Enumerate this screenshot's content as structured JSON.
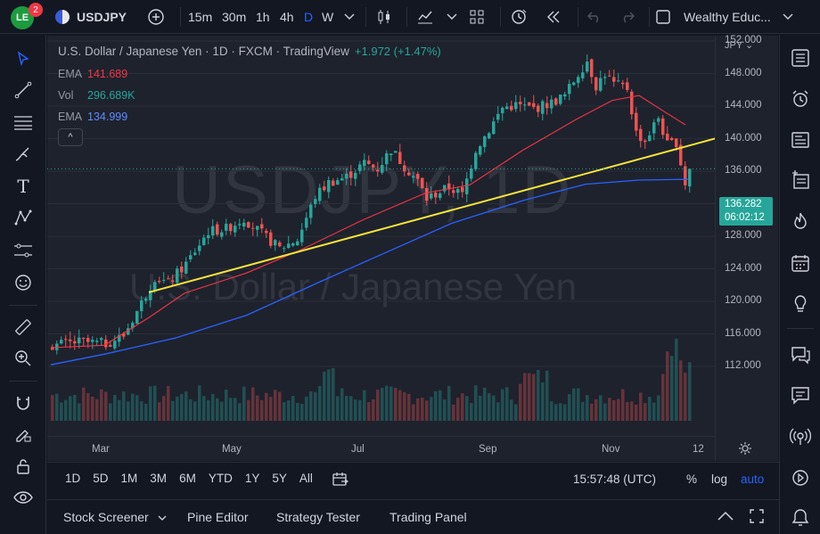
{
  "topbar": {
    "logo_text": "LE",
    "notification_count": "2",
    "symbol": "USDJPY",
    "intervals": [
      "15m",
      "30m",
      "1h",
      "4h",
      "D",
      "W"
    ],
    "active_interval": "D",
    "layout_name": "Wealthy Educ..."
  },
  "legend": {
    "title": "U.S. Dollar / Japanese Yen · 1D · FXCM · TradingView",
    "change": "+1.972 (+1.47%)",
    "indicators": [
      {
        "name": "EMA",
        "value": "141.689",
        "color": "#f23645"
      },
      {
        "name": "Vol",
        "value": "296.689K",
        "color": "#26a69a"
      },
      {
        "name": "EMA",
        "value": "134.999",
        "color": "#2962ff"
      }
    ],
    "collapse_glyph": "^"
  },
  "watermark": {
    "line1": "USDJPY, 1D",
    "line2": "U.S. Dollar / Japanese Yen"
  },
  "price_axis": {
    "currency": "JPY",
    "labels": [
      "152.000",
      "148.000",
      "144.000",
      "140.000",
      "136.000",
      "132.000",
      "128.000",
      "124.000",
      "120.000",
      "116.000",
      "112.000"
    ],
    "current_price": "136.282",
    "countdown": "06:02:12"
  },
  "time_axis": {
    "labels": [
      "Mar",
      "May",
      "Jul",
      "Sep",
      "Nov",
      "12"
    ]
  },
  "range_bar": {
    "ranges": [
      "1D",
      "5D",
      "1M",
      "3M",
      "6M",
      "YTD",
      "1Y",
      "5Y",
      "All"
    ],
    "time": "15:57:48 (UTC)",
    "percent": "%",
    "log": "log",
    "auto": "auto"
  },
  "bottom_panel": {
    "tabs": [
      "Stock Screener",
      "Pine Editor",
      "Strategy Tester",
      "Trading Panel"
    ]
  },
  "colors": {
    "up": "#26a69a",
    "down": "#ef5350",
    "ema_fast": "#f23645",
    "ema_slow": "#2962ff",
    "trendline": "#f5e43a",
    "accent": "#2962ff"
  },
  "chart_data": {
    "type": "candlestick",
    "symbol": "USDJPY",
    "timeframe": "1D",
    "ylim": [
      110,
      154
    ],
    "trendline": {
      "from": {
        "month": "Mar",
        "price": 121
      },
      "to": {
        "month": "Nov+",
        "price": 140
      }
    },
    "ema_slow_path": [
      [
        0,
        112.2
      ],
      [
        60,
        113.5
      ],
      [
        140,
        115.5
      ],
      [
        220,
        118.3
      ],
      [
        300,
        122.3
      ],
      [
        380,
        126.2
      ],
      [
        450,
        129.6
      ],
      [
        530,
        132.4
      ],
      [
        600,
        134.4
      ],
      [
        660,
        134.9
      ],
      [
        715,
        135.0
      ]
    ],
    "ema_fast_path": [
      [
        0,
        114.3
      ],
      [
        60,
        114.6
      ],
      [
        110,
        118.0
      ],
      [
        150,
        121.0
      ],
      [
        220,
        123.5
      ],
      [
        280,
        126.3
      ],
      [
        350,
        130.0
      ],
      [
        420,
        133.3
      ],
      [
        470,
        134.3
      ],
      [
        530,
        138.6
      ],
      [
        590,
        142.4
      ],
      [
        630,
        144.7
      ],
      [
        660,
        145.3
      ],
      [
        690,
        143.2
      ],
      [
        712,
        141.7
      ]
    ],
    "close_path": [
      [
        0,
        114.6
      ],
      [
        30,
        115.0
      ],
      [
        60,
        114.8
      ],
      [
        80,
        115.8
      ],
      [
        100,
        119.8
      ],
      [
        115,
        123.0
      ],
      [
        130,
        122.2
      ],
      [
        150,
        124.6
      ],
      [
        175,
        128.6
      ],
      [
        195,
        128.9
      ],
      [
        215,
        130.2
      ],
      [
        235,
        128.3
      ],
      [
        255,
        126.5
      ],
      [
        275,
        127.6
      ],
      [
        295,
        132.9
      ],
      [
        310,
        134.6
      ],
      [
        330,
        135.3
      ],
      [
        350,
        137.0
      ],
      [
        365,
        136.3
      ],
      [
        380,
        138.7
      ],
      [
        395,
        136.6
      ],
      [
        410,
        134.8
      ],
      [
        420,
        132.6
      ],
      [
        430,
        133.2
      ],
      [
        445,
        134.0
      ],
      [
        460,
        133.1
      ],
      [
        475,
        138.7
      ],
      [
        490,
        141.1
      ],
      [
        505,
        143.8
      ],
      [
        520,
        144.1
      ],
      [
        540,
        143.7
      ],
      [
        560,
        144.4
      ],
      [
        575,
        145.3
      ],
      [
        590,
        148.0
      ],
      [
        600,
        149.6
      ],
      [
        610,
        146.5
      ],
      [
        620,
        148.0
      ],
      [
        630,
        146.7
      ],
      [
        645,
        146.2
      ],
      [
        655,
        140.7
      ],
      [
        665,
        139.7
      ],
      [
        680,
        142.6
      ],
      [
        690,
        139.2
      ],
      [
        700,
        139.6
      ],
      [
        705,
        137.0
      ],
      [
        710,
        134.5
      ],
      [
        715,
        136.3
      ]
    ]
  }
}
